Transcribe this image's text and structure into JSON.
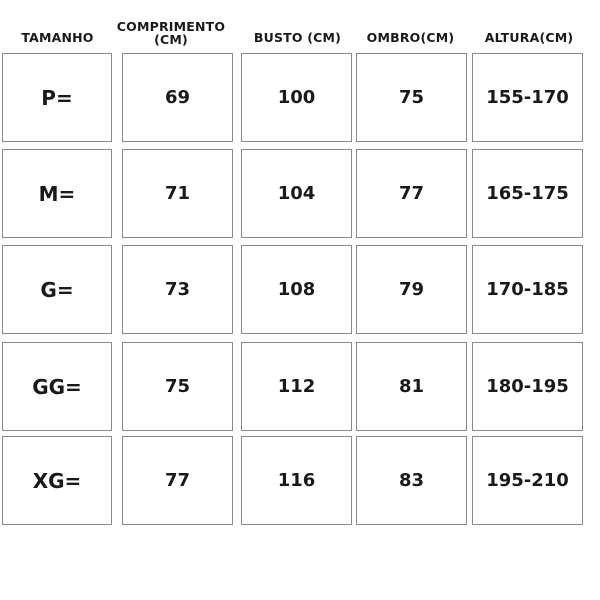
{
  "headers": [
    "TAMANHO",
    "COMPRIMENTO (CM)",
    "BUSTO (CM)",
    "OMBRO(CM)",
    "ALTURA(CM)"
  ],
  "header_comprimento_line1": "COMPRIMENTO",
  "header_comprimento_line2": "(CM)",
  "rows": [
    {
      "size": "P=",
      "comprimento": "69",
      "busto": "100",
      "ombro": "75",
      "altura": "155-170"
    },
    {
      "size": "M=",
      "comprimento": "71",
      "busto": "104",
      "ombro": "77",
      "altura": "165-175"
    },
    {
      "size": "G=",
      "comprimento": "73",
      "busto": "108",
      "ombro": "79",
      "altura": "170-185"
    },
    {
      "size": "GG=",
      "comprimento": "75",
      "busto": "112",
      "ombro": "81",
      "altura": "180-195"
    },
    {
      "size": "XG=",
      "comprimento": "77",
      "busto": "116",
      "ombro": "83",
      "altura": "195-210"
    }
  ]
}
